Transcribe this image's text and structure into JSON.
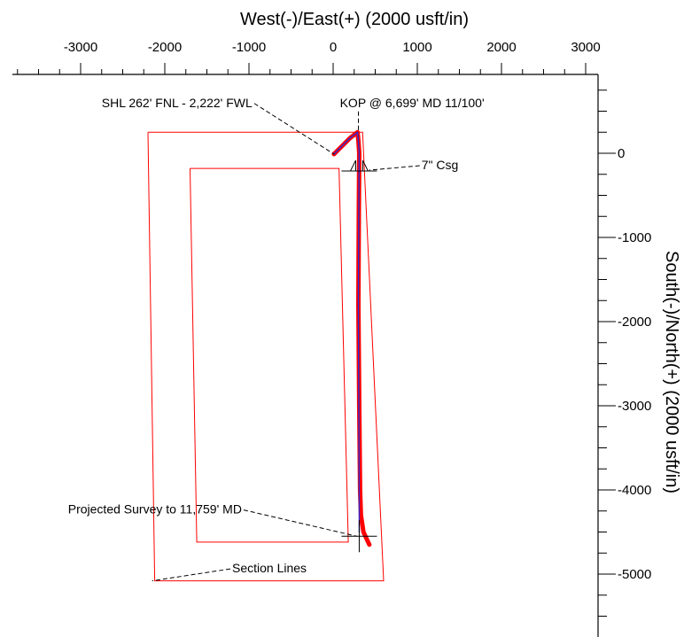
{
  "chart_data": {
    "type": "line",
    "title": "",
    "xlabel": "West(-)/East(+) (2000 usft/in)",
    "ylabel": "South(-)/North(+) (2000 usft/in)",
    "xlim": [
      -4000,
      3300
    ],
    "ylim": [
      -5600,
      1000
    ],
    "x_ticks": [
      -4000,
      -3000,
      -2000,
      -1000,
      0,
      1000,
      2000,
      3000
    ],
    "x_tick_labels": [
      ")",
      "-3000",
      "-2000",
      "-1000",
      "0",
      "1000",
      "2000",
      "3000"
    ],
    "y_ticks": [
      0,
      -1000,
      -2000,
      -3000,
      -4000,
      -5000
    ],
    "y_tick_labels": [
      "0",
      "-1000",
      "-2000",
      "-3000",
      "-4000",
      "-5000"
    ],
    "axis_position": {
      "x": "top",
      "y": "right"
    },
    "grid": false,
    "series": [
      {
        "name": "",
        "color": "#ff0000",
        "style": "thick",
        "x": [
          10,
          100,
          200,
          290,
          300,
          310,
          305,
          300,
          310,
          320,
          330,
          360,
          430
        ],
        "y": [
          -10,
          80,
          180,
          250,
          150,
          0,
          -700,
          -1800,
          -3000,
          -4000,
          -4300,
          -4500,
          -4650
        ]
      },
      {
        "name": "",
        "color": "#2b2bd6",
        "style": "thin",
        "x": [
          10,
          100,
          200,
          290,
          300,
          310,
          305,
          300,
          305,
          310,
          310
        ],
        "y": [
          -10,
          80,
          180,
          250,
          150,
          0,
          -700,
          -1800,
          -3000,
          -4000,
          -4500
        ]
      }
    ],
    "boundaries": [
      {
        "name": "Section Lines",
        "color": "#ff0000",
        "x": [
          -2200,
          350,
          600,
          -2120,
          -2200
        ],
        "y": [
          250,
          250,
          -5080,
          -5080,
          250
        ]
      },
      {
        "name": "",
        "color": "#ff0000",
        "x": [
          -1700,
          70,
          180,
          -1620,
          -1700
        ],
        "y": [
          -180,
          -180,
          -4620,
          -4620,
          -180
        ]
      }
    ],
    "markers": [
      {
        "label": "7\" Csg",
        "type": "casing",
        "x": 310,
        "y": -190
      },
      {
        "label": "",
        "type": "cross",
        "x": 310,
        "y": -4550
      }
    ],
    "annotations": [
      {
        "text": "SHL 262' FNL - 2,222' FWL",
        "x": -2750,
        "y": 550,
        "to": [
          10,
          -10
        ]
      },
      {
        "text": "KOP @ 6,699' MD  11/100'",
        "x": 80,
        "y": 550,
        "to": [
          300,
          250
        ]
      },
      {
        "text": "7\" Csg",
        "x": 1050,
        "y": -190,
        "to": [
          430,
          -200
        ]
      },
      {
        "text": "Projected Survey to 11,759' MD",
        "x": -3150,
        "y": -4280,
        "to": [
          280,
          -4550
        ]
      },
      {
        "text": "Section Lines",
        "x": -1200,
        "y": -4980,
        "to": [
          -2150,
          -5080
        ]
      }
    ]
  }
}
